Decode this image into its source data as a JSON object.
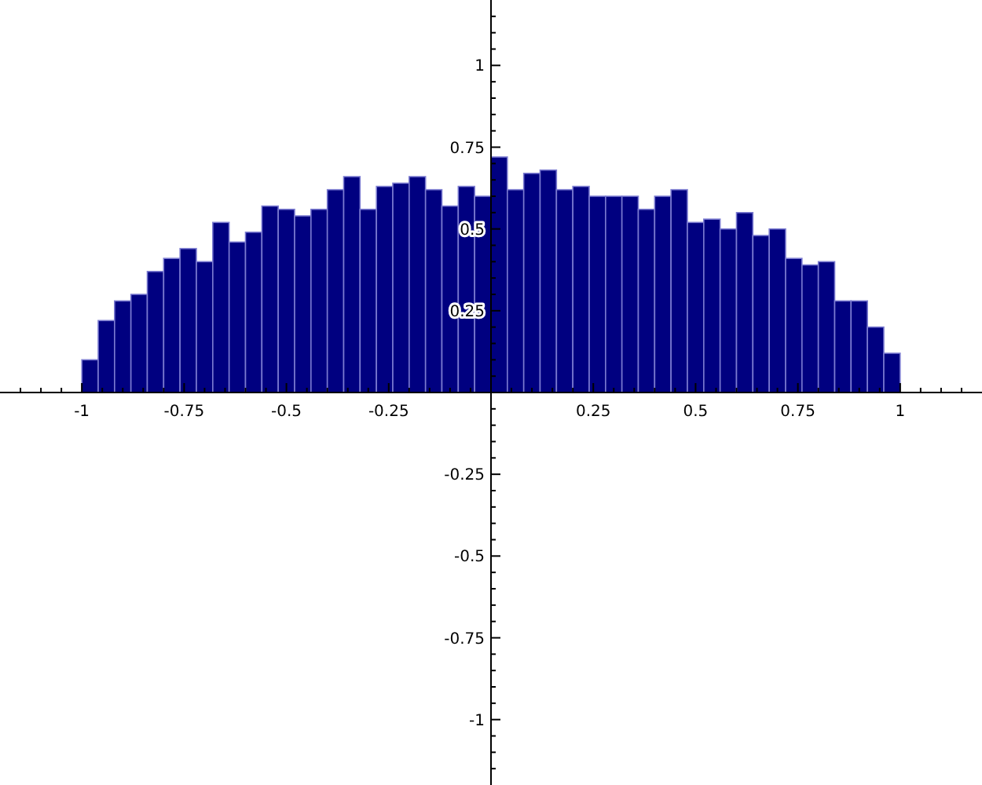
{
  "chart_data": {
    "type": "histogram",
    "color": "#000080",
    "bins": [
      -1,
      -0.96,
      -0.92,
      -0.88,
      -0.84,
      -0.8,
      -0.76,
      -0.72,
      -0.68,
      -0.64,
      -0.6,
      -0.56,
      -0.52,
      -0.48,
      -0.44,
      -0.4,
      -0.36,
      -0.32,
      -0.28,
      -0.24,
      -0.2,
      -0.16,
      -0.12,
      -0.08,
      -0.04,
      0,
      0.04,
      0.08,
      0.12,
      0.16,
      0.2,
      0.24,
      0.28,
      0.32,
      0.36,
      0.4,
      0.44,
      0.48,
      0.52,
      0.56,
      0.6,
      0.64,
      0.68,
      0.72,
      0.76,
      0.8,
      0.84,
      0.88,
      0.92,
      0.96,
      1
    ],
    "values": [
      0.1,
      0.22,
      0.28,
      0.3,
      0.37,
      0.41,
      0.44,
      0.4,
      0.52,
      0.46,
      0.49,
      0.57,
      0.56,
      0.54,
      0.56,
      0.62,
      0.66,
      0.56,
      0.63,
      0.64,
      0.66,
      0.62,
      0.57,
      0.63,
      0.6,
      0.72,
      0.62,
      0.67,
      0.68,
      0.62,
      0.63,
      0.6,
      0.6,
      0.6,
      0.56,
      0.6,
      0.62,
      0.52,
      0.53,
      0.5,
      0.55,
      0.48,
      0.5,
      0.41,
      0.39,
      0.4,
      0.28,
      0.28,
      0.2,
      0.12
    ],
    "xlim": [
      -1.2,
      1.2
    ],
    "ylim": [
      -1.2,
      1.2
    ],
    "xticks": [
      {
        "value": -1.15,
        "label": null
      },
      {
        "value": -1.1,
        "label": null
      },
      {
        "value": -1.05,
        "label": null
      },
      -1,
      {
        "value": -0.95,
        "label": null
      },
      {
        "value": -0.9,
        "label": null
      },
      {
        "value": -0.85,
        "label": null
      },
      {
        "value": -0.8,
        "label": null
      },
      -0.75,
      {
        "value": -0.7,
        "label": null
      },
      {
        "value": -0.65,
        "label": null
      },
      {
        "value": -0.6,
        "label": null
      },
      {
        "value": -0.55,
        "label": null
      },
      -0.5,
      {
        "value": -0.45,
        "label": null
      },
      {
        "value": -0.4,
        "label": null
      },
      {
        "value": -0.35,
        "label": null
      },
      {
        "value": -0.3,
        "label": null
      },
      -0.25,
      {
        "value": -0.2,
        "label": null
      },
      {
        "value": -0.15,
        "label": null
      },
      {
        "value": -0.1,
        "label": null
      },
      {
        "value": -0.05,
        "label": null
      },
      {
        "value": 0.05,
        "label": null
      },
      {
        "value": 0.1,
        "label": null
      },
      {
        "value": 0.15,
        "label": null
      },
      {
        "value": 0.2,
        "label": null
      },
      0.25,
      {
        "value": 0.3,
        "label": null
      },
      {
        "value": 0.35,
        "label": null
      },
      {
        "value": 0.4,
        "label": null
      },
      {
        "value": 0.45,
        "label": null
      },
      0.5,
      {
        "value": 0.55,
        "label": null
      },
      {
        "value": 0.6,
        "label": null
      },
      {
        "value": 0.65,
        "label": null
      },
      {
        "value": 0.7,
        "label": null
      },
      0.75,
      {
        "value": 0.8,
        "label": null
      },
      {
        "value": 0.85,
        "label": null
      },
      {
        "value": 0.9,
        "label": null
      },
      {
        "value": 0.95,
        "label": null
      },
      1,
      {
        "value": 1.05,
        "label": null
      },
      {
        "value": 1.1,
        "label": null
      },
      {
        "value": 1.15,
        "label": null
      }
    ],
    "yticks": [
      {
        "value": -1.15,
        "label": null
      },
      {
        "value": -1.1,
        "label": null
      },
      {
        "value": -1.05,
        "label": null
      },
      -1,
      {
        "value": -0.95,
        "label": null
      },
      {
        "value": -0.9,
        "label": null
      },
      {
        "value": -0.85,
        "label": null
      },
      {
        "value": -0.8,
        "label": null
      },
      -0.75,
      {
        "value": -0.7,
        "label": null
      },
      {
        "value": -0.65,
        "label": null
      },
      {
        "value": -0.6,
        "label": null
      },
      {
        "value": -0.55,
        "label": null
      },
      -0.5,
      {
        "value": -0.45,
        "label": null
      },
      {
        "value": -0.4,
        "label": null
      },
      {
        "value": -0.35,
        "label": null
      },
      {
        "value": -0.3,
        "label": null
      },
      -0.25,
      {
        "value": -0.2,
        "label": null
      },
      {
        "value": -0.15,
        "label": null
      },
      {
        "value": -0.1,
        "label": null
      },
      {
        "value": -0.05,
        "label": null
      },
      {
        "value": 0.05,
        "label": null
      },
      {
        "value": 0.1,
        "label": null
      },
      {
        "value": 0.15,
        "label": null
      },
      {
        "value": 0.2,
        "label": null
      },
      0.25,
      {
        "value": 0.3,
        "label": null
      },
      {
        "value": 0.35,
        "label": null
      },
      {
        "value": 0.4,
        "label": null
      },
      {
        "value": 0.45,
        "label": null
      },
      0.5,
      {
        "value": 0.55,
        "label": null
      },
      {
        "value": 0.6,
        "label": null
      },
      {
        "value": 0.65,
        "label": null
      },
      {
        "value": 0.7,
        "label": null
      },
      0.75,
      {
        "value": 0.8,
        "label": null
      },
      {
        "value": 0.85,
        "label": null
      },
      {
        "value": 0.9,
        "label": null
      },
      {
        "value": 0.95,
        "label": null
      },
      1,
      {
        "value": 1.05,
        "label": null
      },
      {
        "value": 1.1,
        "label": null
      },
      {
        "value": 1.15,
        "label": null
      }
    ]
  }
}
